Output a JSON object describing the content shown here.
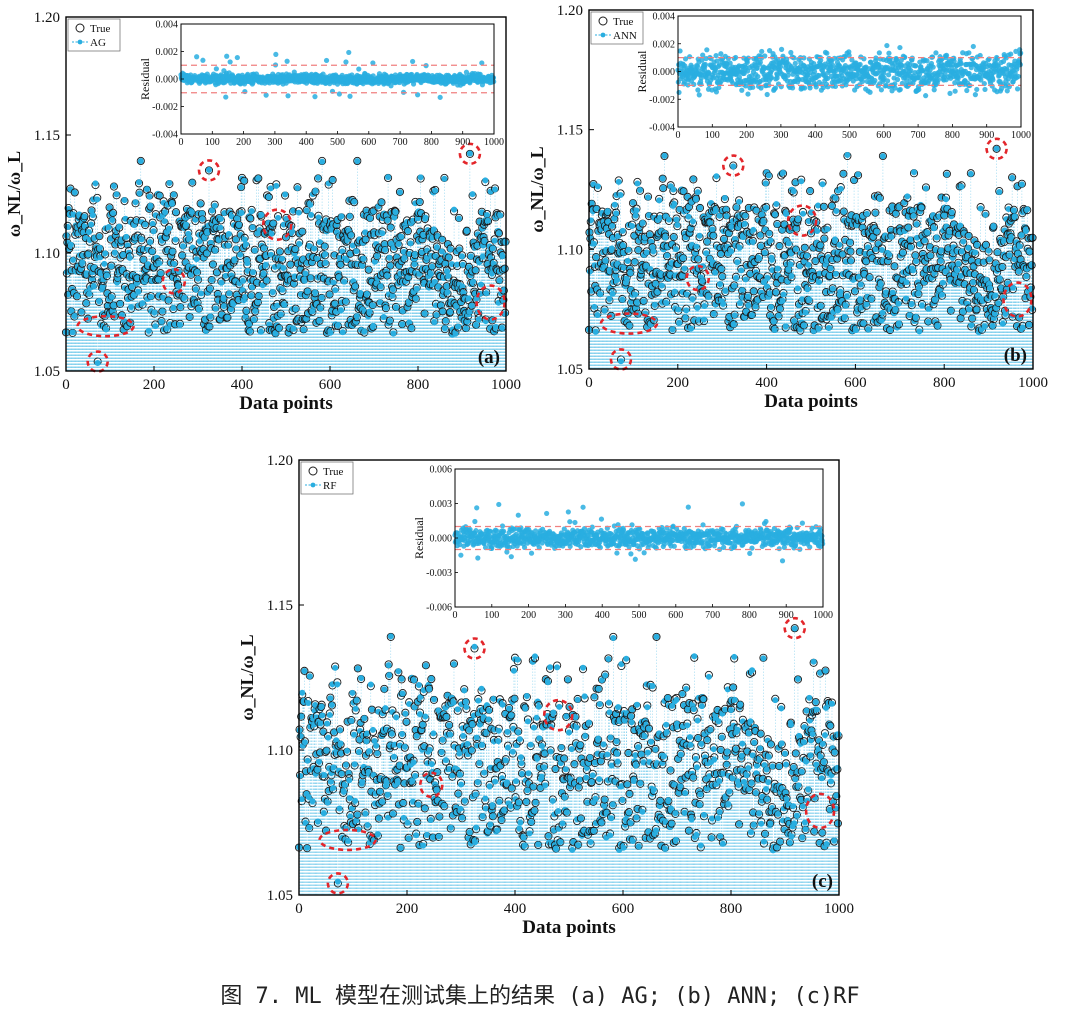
{
  "caption": "图 7. ML 模型在测试集上的结果 (a) AG; (b) ANN; (c)RF",
  "colors": {
    "pred": "#29aee0",
    "true": "#1a1a1a",
    "highlight": "#e3262b",
    "refline": "#f08080"
  },
  "chart_data": [
    {
      "type": "scatter",
      "panel": "(a)",
      "xlabel": "Data points",
      "ylabel": "ω_NL/ω_L",
      "xlim": [
        0,
        1000
      ],
      "ylim": [
        1.05,
        1.2
      ],
      "xticks": [
        "0",
        "200",
        "400",
        "600",
        "800",
        "1000"
      ],
      "yticks": [
        "1.05",
        "1.10",
        "1.15",
        "1.20"
      ],
      "legend": [
        "True",
        "AG"
      ],
      "n_points": 1000,
      "highlighted_points": [
        {
          "x": 72,
          "y": 1.054
        },
        {
          "x": 325,
          "y": 1.135
        },
        {
          "x": 918,
          "y": 1.142
        }
      ],
      "inset": {
        "ylabel": "Residual",
        "xlim": [
          0,
          1000
        ],
        "ylim": [
          -0.004,
          0.004
        ],
        "xticks": [
          "0",
          "100",
          "200",
          "300",
          "400",
          "500",
          "600",
          "700",
          "800",
          "900",
          "1000"
        ],
        "yticks": [
          "-0.004",
          "-0.002",
          "0.000",
          "0.002",
          "0.004"
        ],
        "band": [
          -0.001,
          0.001
        ],
        "spread": 0.00025
      }
    },
    {
      "type": "scatter",
      "panel": "(b)",
      "xlabel": "Data points",
      "ylabel": "ω_NL/ω_L",
      "xlim": [
        0,
        1000
      ],
      "ylim": [
        1.05,
        1.2
      ],
      "xticks": [
        "0",
        "200",
        "400",
        "600",
        "800",
        "1000"
      ],
      "yticks": [
        "1.05",
        "1.10",
        "1.15",
        "1.20"
      ],
      "legend": [
        "True",
        "ANN"
      ],
      "n_points": 1000,
      "highlighted_points": [
        {
          "x": 72,
          "y": 1.054
        },
        {
          "x": 325,
          "y": 1.135
        },
        {
          "x": 918,
          "y": 1.142
        }
      ],
      "inset": {
        "ylabel": "Residual",
        "xlim": [
          0,
          1000
        ],
        "ylim": [
          -0.004,
          0.004
        ],
        "xticks": [
          "0",
          "100",
          "200",
          "300",
          "400",
          "500",
          "600",
          "700",
          "800",
          "900",
          "1000"
        ],
        "yticks": [
          "-0.004",
          "-0.002",
          "0.000",
          "0.002",
          "0.004"
        ],
        "band": [
          -0.001,
          0.001
        ],
        "spread": 0.0009
      }
    },
    {
      "type": "scatter",
      "panel": "(c)",
      "xlabel": "Data points",
      "ylabel": "ω_NL/ω_L",
      "xlim": [
        0,
        1000
      ],
      "ylim": [
        1.05,
        1.2
      ],
      "xticks": [
        "0",
        "200",
        "400",
        "600",
        "800",
        "1000"
      ],
      "yticks": [
        "1.05",
        "1.10",
        "1.15",
        "1.20"
      ],
      "legend": [
        "True",
        "RF"
      ],
      "n_points": 1000,
      "highlighted_points": [
        {
          "x": 72,
          "y": 1.054
        },
        {
          "x": 325,
          "y": 1.135
        },
        {
          "x": 918,
          "y": 1.142
        }
      ],
      "inset": {
        "ylabel": "Residual",
        "xlim": [
          0,
          1000
        ],
        "ylim": [
          -0.006,
          0.006
        ],
        "xticks": [
          "0",
          "100",
          "200",
          "300",
          "400",
          "500",
          "600",
          "700",
          "800",
          "900",
          "1000"
        ],
        "yticks": [
          "-0.006",
          "-0.003",
          "0.000",
          "0.003",
          "0.006"
        ],
        "band": [
          -0.001,
          0.001
        ],
        "spread": 0.0006
      }
    }
  ]
}
